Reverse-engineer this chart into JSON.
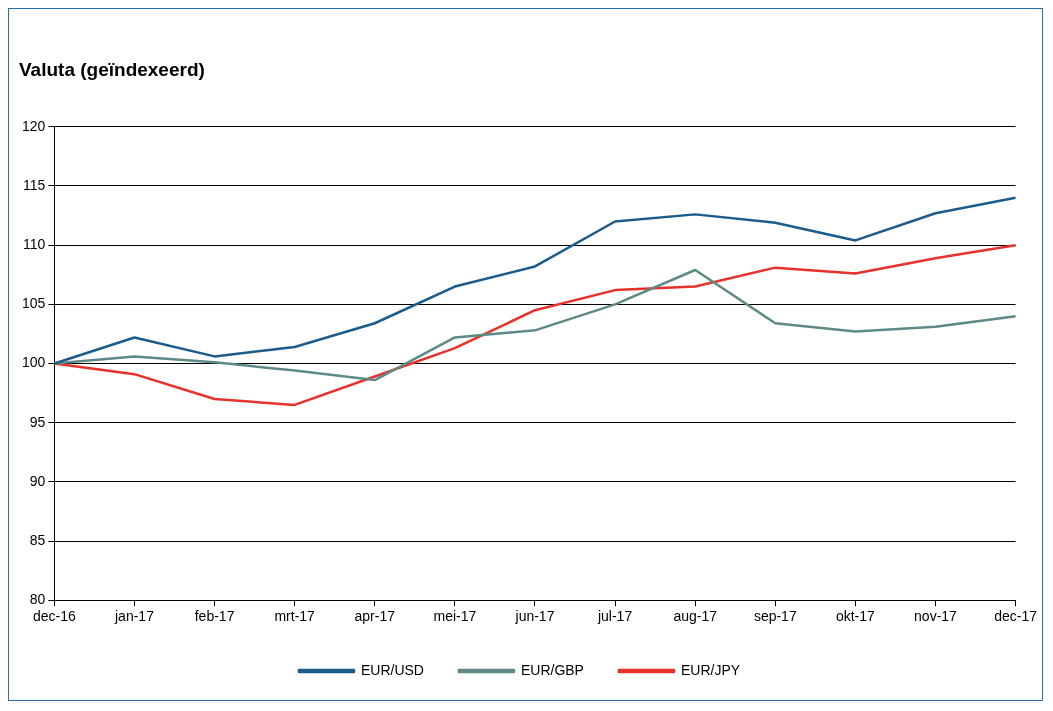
{
  "chart_data": {
    "type": "line",
    "title": "Valuta (geïndexeerd)",
    "categories": [
      "dec-16",
      "jan-17",
      "feb-17",
      "mrt-17",
      "apr-17",
      "mei-17",
      "jun-17",
      "jul-17",
      "aug-17",
      "sep-17",
      "okt-17",
      "nov-17",
      "dec-17"
    ],
    "series": [
      {
        "name": "EUR/USD",
        "color": "#1b5c8c",
        "values": [
          100,
          102.2,
          100.6,
          101.4,
          103.4,
          106.5,
          108.2,
          112,
          112.6,
          111.9,
          110.4,
          112.7,
          114
        ]
      },
      {
        "name": "EUR/GBP",
        "color": "#5d8a86",
        "values": [
          100,
          100.6,
          100.1,
          99.4,
          98.6,
          102.2,
          102.8,
          105,
          107.9,
          103.4,
          102.7,
          103.1,
          104
        ]
      },
      {
        "name": "EUR/JPY",
        "color": "#e8312a",
        "values": [
          100,
          99.1,
          97,
          96.5,
          98.9,
          101.3,
          104.5,
          106.2,
          106.5,
          108.1,
          107.6,
          108.9,
          110
        ]
      }
    ],
    "ylim": [
      80,
      120
    ],
    "yticks": [
      80,
      85,
      90,
      95,
      100,
      105,
      110,
      115,
      120
    ],
    "grid": "y",
    "legend": "bottom",
    "marker": "none",
    "line_style": "solid"
  }
}
